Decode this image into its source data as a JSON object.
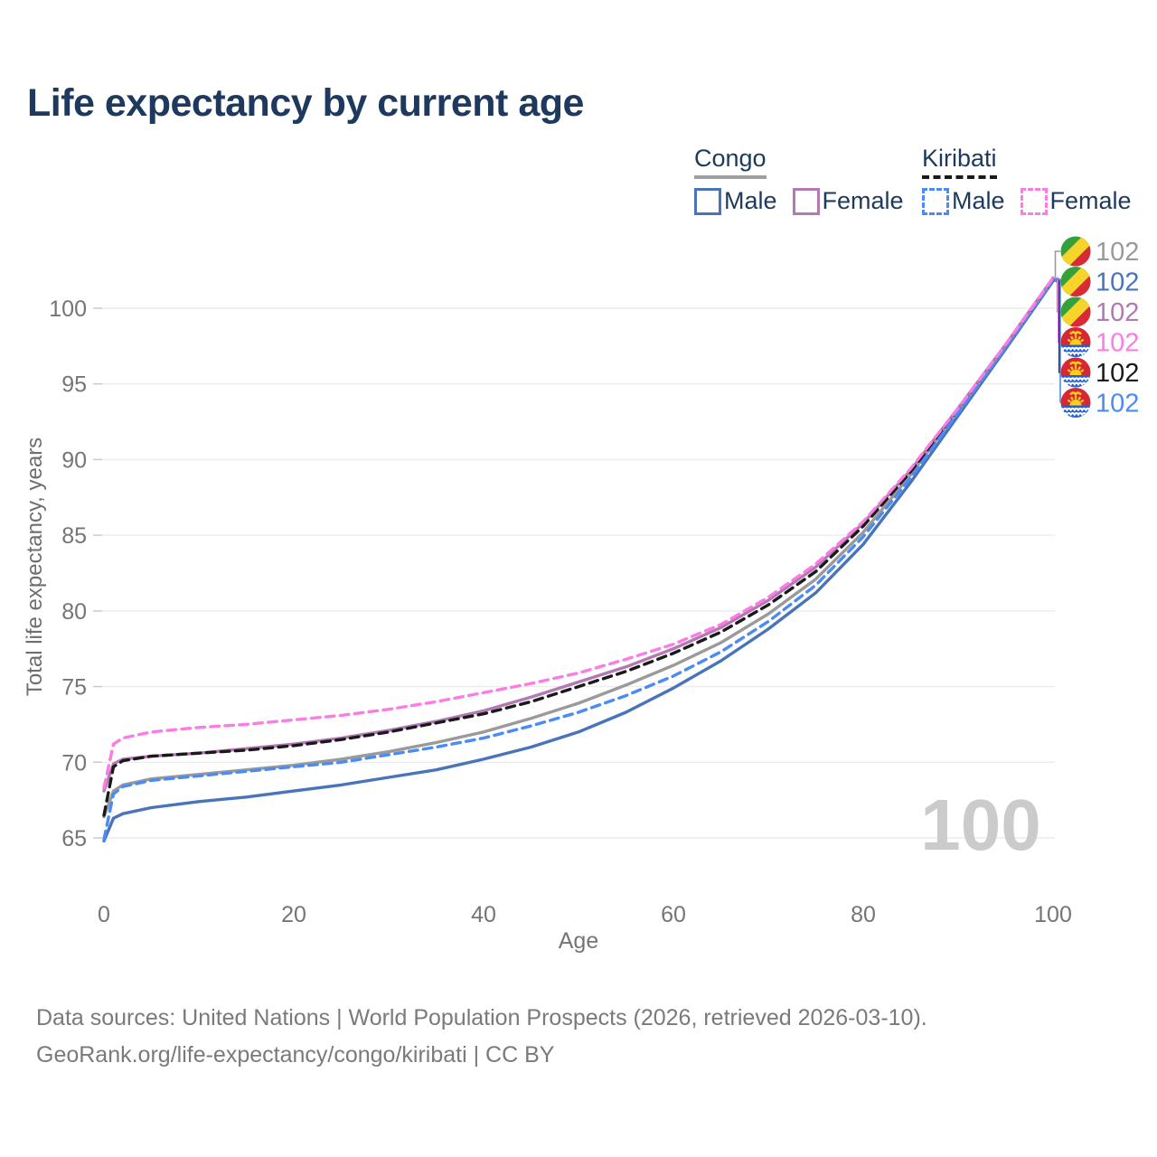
{
  "title": "Life expectancy by current age",
  "colors": {
    "title_text": "#1d3a5e",
    "legend_text": "#1d3a5e",
    "axis_text": "#757575",
    "axis_title_text": "#6e6e6e",
    "grid": "#ececec",
    "tick": "#c9c9c9",
    "watermark": "#cbcbcb",
    "footer_text": "#7a7a7a",
    "congo_male": "#4a74b9",
    "congo_female": "#b279b2",
    "congo_total": "#9a9a9a",
    "kiribati_male": "#4b8bf5",
    "kiribati_female": "#fb7ce5",
    "kiribati_total": "#1a1a1a"
  },
  "legend": {
    "groups": [
      {
        "name": "Congo",
        "underline": "solid",
        "underline_color": "#9e9e9e",
        "items": [
          {
            "label": "Male",
            "color": "#4a74b9"
          },
          {
            "label": "Female",
            "color": "#b279b2"
          }
        ]
      },
      {
        "name": "Kiribati",
        "underline": "dashed",
        "underline_color": "#1a1a1a",
        "items": [
          {
            "label": "Male",
            "color": "#4b8bf5"
          },
          {
            "label": "Female",
            "color": "#fb7ce5"
          }
        ]
      }
    ]
  },
  "chart_data": {
    "type": "line",
    "title": "Life expectancy by current age",
    "xlabel": "Age",
    "ylabel": "Total life expectancy, years",
    "xlim": [
      0,
      100
    ],
    "ylim": [
      65,
      100
    ],
    "x_ticks": [
      0,
      20,
      40,
      60,
      80,
      100
    ],
    "y_ticks": [
      65,
      70,
      75,
      80,
      85,
      90,
      95,
      100
    ],
    "grid": true,
    "legend_position": "top-right",
    "watermark": "100",
    "x": [
      0,
      1,
      2,
      5,
      10,
      15,
      20,
      25,
      30,
      35,
      40,
      45,
      50,
      55,
      60,
      65,
      70,
      75,
      80,
      85,
      90,
      95,
      100
    ],
    "series": [
      {
        "id": "congo-male",
        "name": "Congo Male",
        "country": "Congo",
        "sex": "Male",
        "color": "#4a74b9",
        "dash": "solid",
        "flag": "congo",
        "end_label": "102",
        "label_row": 1,
        "values": [
          64.8,
          66.3,
          66.6,
          67.0,
          67.4,
          67.7,
          68.1,
          68.5,
          69.0,
          69.5,
          70.2,
          71.0,
          72.0,
          73.3,
          74.9,
          76.7,
          78.8,
          81.2,
          84.4,
          88.5,
          92.9,
          97.3,
          101.8
        ]
      },
      {
        "id": "congo-total",
        "name": "Congo",
        "country": "Congo",
        "sex": "Both",
        "color": "#9a9a9a",
        "dash": "solid",
        "flag": "congo",
        "end_label": "102",
        "label_row": 0,
        "values": [
          66.4,
          68.1,
          68.5,
          68.9,
          69.2,
          69.5,
          69.8,
          70.2,
          70.7,
          71.3,
          72.0,
          72.9,
          73.9,
          75.1,
          76.4,
          77.9,
          79.8,
          82.1,
          85.2,
          89.0,
          93.2,
          97.5,
          101.9
        ]
      },
      {
        "id": "congo-female",
        "name": "Congo Female",
        "country": "Congo",
        "sex": "Female",
        "color": "#b279b2",
        "dash": "solid",
        "flag": "congo",
        "end_label": "102",
        "label_row": 2,
        "values": [
          68.1,
          69.9,
          70.2,
          70.4,
          70.6,
          70.9,
          71.2,
          71.6,
          72.1,
          72.7,
          73.4,
          74.3,
          75.3,
          76.3,
          77.5,
          78.9,
          80.7,
          82.9,
          85.8,
          89.3,
          93.4,
          97.6,
          102.0
        ]
      },
      {
        "id": "kiribati-total",
        "name": "Kiribati",
        "country": "Kiribati",
        "sex": "Both",
        "color": "#1a1a1a",
        "dash": "dashed",
        "flag": "kiribati",
        "end_label": "102",
        "label_row": 4,
        "values": [
          66.5,
          69.7,
          70.1,
          70.4,
          70.6,
          70.8,
          71.1,
          71.5,
          72.0,
          72.6,
          73.2,
          74.0,
          75.0,
          76.0,
          77.2,
          78.6,
          80.4,
          82.6,
          85.6,
          89.2,
          93.3,
          97.5,
          101.9
        ]
      },
      {
        "id": "kiribati-male",
        "name": "Kiribati Male",
        "country": "Kiribati",
        "sex": "Male",
        "color": "#4b8bf5",
        "dash": "dashed",
        "flag": "kiribati",
        "end_label": "102",
        "label_row": 5,
        "values": [
          64.9,
          67.9,
          68.4,
          68.8,
          69.1,
          69.4,
          69.7,
          70.0,
          70.5,
          71.0,
          71.6,
          72.4,
          73.3,
          74.4,
          75.7,
          77.3,
          79.3,
          81.7,
          84.9,
          88.8,
          93.1,
          97.4,
          101.9
        ]
      },
      {
        "id": "kiribati-female",
        "name": "Kiribati Female",
        "country": "Kiribati",
        "sex": "Female",
        "color": "#fb7ce5",
        "dash": "dashed",
        "flag": "kiribati",
        "end_label": "102",
        "label_row": 3,
        "values": [
          68.3,
          71.2,
          71.6,
          72.0,
          72.3,
          72.5,
          72.8,
          73.1,
          73.5,
          74.0,
          74.6,
          75.2,
          75.9,
          76.8,
          77.8,
          79.1,
          80.9,
          83.1,
          85.9,
          89.4,
          93.4,
          97.6,
          102.0
        ]
      }
    ]
  },
  "footer": {
    "line1": "Data sources: United Nations | World Population Prospects (2026, retrieved 2026-03-10).",
    "line2": "GeoRank.org/life-expectancy/congo/kiribati | CC BY"
  }
}
